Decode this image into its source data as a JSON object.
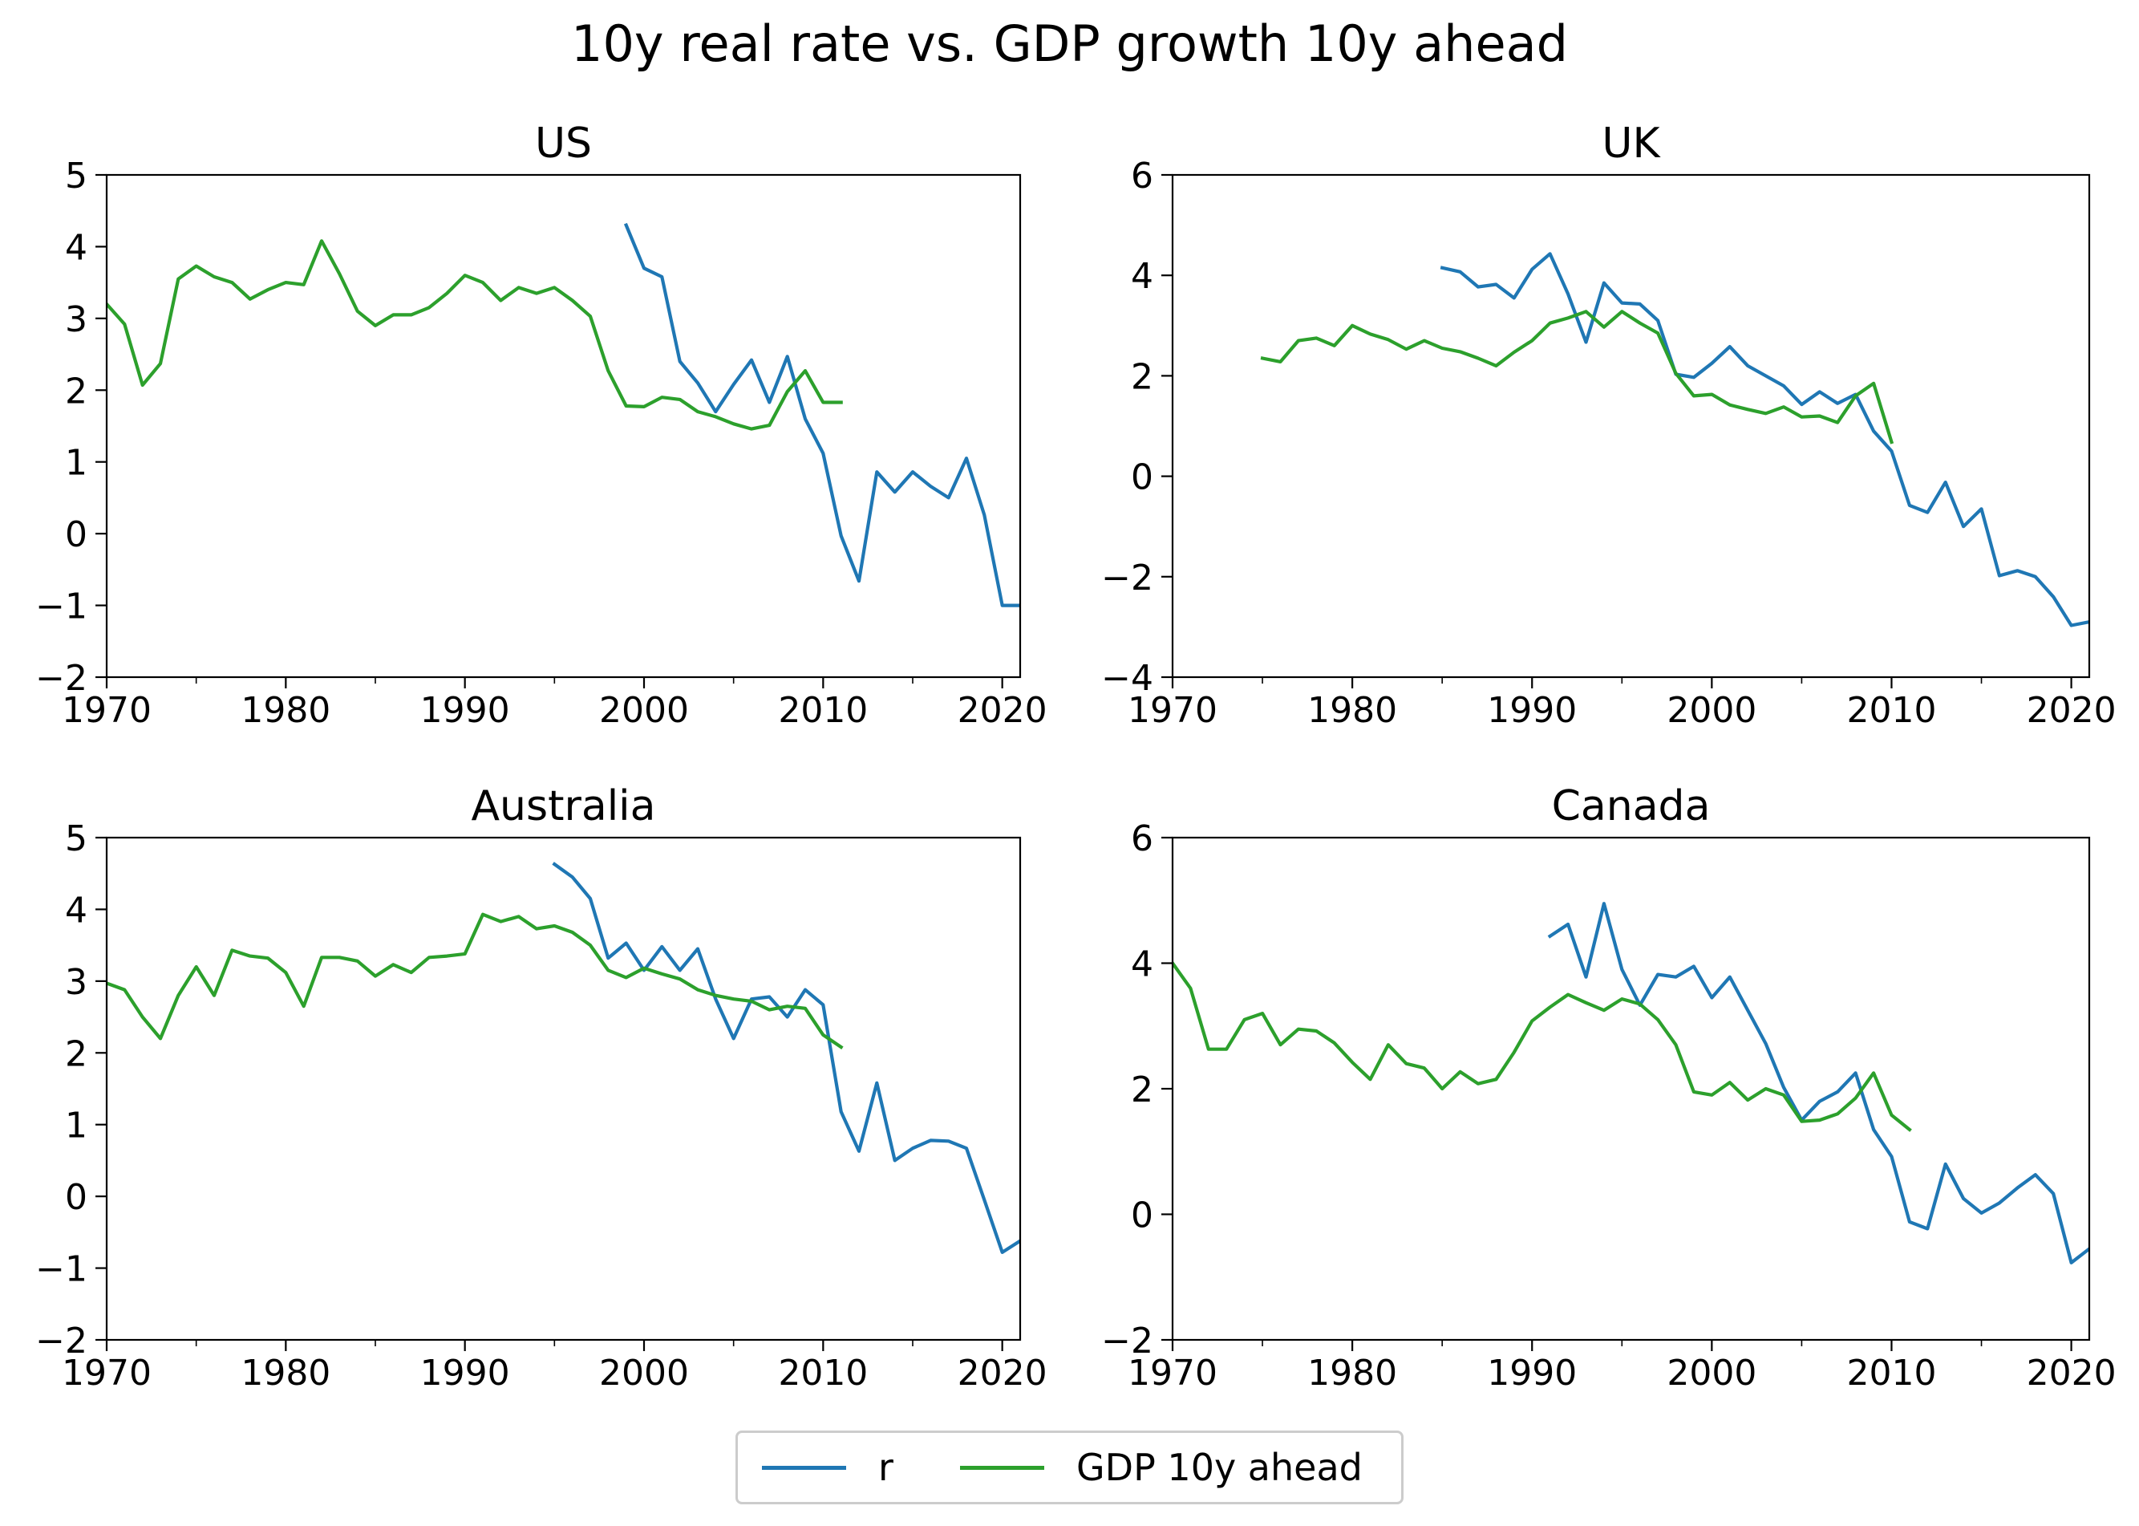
{
  "figure": {
    "title": "10y real rate vs. GDP growth 10y ahead",
    "legend": [
      {
        "label": "r",
        "color": "#1f77b4"
      },
      {
        "label": "GDP 10y ahead",
        "color": "#2ca02c"
      }
    ],
    "legend_placement": "bottom-center"
  },
  "chart_data": [
    {
      "type": "line",
      "title": "US",
      "xlim": [
        1970,
        2021
      ],
      "ylim": [
        -2,
        5
      ],
      "xticks": [
        1970,
        1980,
        1990,
        2000,
        2010,
        2020
      ],
      "xtick_labels": [
        "1970",
        "1980",
        "1990",
        "2000",
        "2010",
        "2020"
      ],
      "yticks": [
        -2,
        -1,
        0,
        1,
        2,
        3,
        4,
        5
      ],
      "ytick_labels": [
        "−2",
        "−1",
        "0",
        "1",
        "2",
        "3",
        "4",
        "5"
      ],
      "grid": false,
      "series": [
        {
          "name": "r",
          "color": "#1f77b4",
          "x": [
            1999,
            2000,
            2001,
            2002,
            2003,
            2004,
            2005,
            2006,
            2007,
            2008,
            2009,
            2010,
            2011,
            2012,
            2013,
            2014,
            2015,
            2016,
            2017,
            2018,
            2019,
            2020,
            2021
          ],
          "y": [
            4.3,
            3.7,
            3.58,
            2.4,
            2.1,
            1.7,
            2.08,
            2.42,
            1.83,
            2.47,
            1.6,
            1.12,
            -0.03,
            -0.66,
            0.86,
            0.58,
            0.86,
            0.66,
            0.5,
            1.05,
            0.26,
            -1.0,
            -1.0
          ]
        },
        {
          "name": "GDP 10y ahead",
          "color": "#2ca02c",
          "x": [
            1970,
            1971,
            1972,
            1973,
            1974,
            1975,
            1976,
            1977,
            1978,
            1979,
            1980,
            1981,
            1982,
            1983,
            1984,
            1985,
            1986,
            1987,
            1988,
            1989,
            1990,
            1991,
            1992,
            1993,
            1994,
            1995,
            1996,
            1997,
            1998,
            1999,
            2000,
            2001,
            2002,
            2003,
            2004,
            2005,
            2006,
            2007,
            2008,
            2009,
            2010,
            2011
          ],
          "y": [
            3.2,
            2.92,
            2.07,
            2.37,
            3.55,
            3.73,
            3.58,
            3.5,
            3.27,
            3.4,
            3.5,
            3.47,
            4.08,
            3.62,
            3.1,
            2.9,
            3.05,
            3.05,
            3.15,
            3.35,
            3.6,
            3.5,
            3.25,
            3.43,
            3.35,
            3.43,
            3.25,
            3.03,
            2.27,
            1.78,
            1.77,
            1.9,
            1.87,
            1.7,
            1.63,
            1.53,
            1.46,
            1.51,
            1.98,
            2.27,
            1.83,
            1.83
          ]
        }
      ]
    },
    {
      "type": "line",
      "title": "UK",
      "xlim": [
        1970,
        2021
      ],
      "ylim": [
        -4,
        6
      ],
      "xticks": [
        1970,
        1980,
        1990,
        2000,
        2010,
        2020
      ],
      "xtick_labels": [
        "1970",
        "1980",
        "1990",
        "2000",
        "2010",
        "2020"
      ],
      "yticks": [
        -4,
        -2,
        0,
        2,
        4,
        6
      ],
      "ytick_labels": [
        "−4",
        "−2",
        "0",
        "2",
        "4",
        "6"
      ],
      "grid": false,
      "series": [
        {
          "name": "r",
          "color": "#1f77b4",
          "x": [
            1985,
            1986,
            1987,
            1988,
            1989,
            1990,
            1991,
            1992,
            1993,
            1994,
            1995,
            1996,
            1997,
            1998,
            1999,
            2000,
            2001,
            2002,
            2003,
            2004,
            2005,
            2006,
            2007,
            2008,
            2009,
            2010,
            2011,
            2012,
            2013,
            2014,
            2015,
            2016,
            2017,
            2018,
            2019,
            2020,
            2021
          ],
          "y": [
            4.15,
            4.07,
            3.77,
            3.82,
            3.55,
            4.12,
            4.43,
            3.63,
            2.67,
            3.85,
            3.45,
            3.43,
            3.1,
            2.03,
            1.97,
            2.25,
            2.58,
            2.2,
            2.0,
            1.8,
            1.43,
            1.68,
            1.45,
            1.63,
            0.9,
            0.5,
            -0.58,
            -0.72,
            -0.12,
            -1.0,
            -0.65,
            -1.98,
            -1.88,
            -2.0,
            -2.4,
            -2.97,
            -2.9
          ]
        },
        {
          "name": "GDP 10y ahead",
          "color": "#2ca02c",
          "x": [
            1975,
            1976,
            1977,
            1978,
            1979,
            1980,
            1981,
            1982,
            1983,
            1984,
            1985,
            1986,
            1987,
            1988,
            1989,
            1990,
            1991,
            1992,
            1993,
            1994,
            1995,
            1996,
            1997,
            1998,
            1999,
            2000,
            2001,
            2002,
            2003,
            2004,
            2005,
            2006,
            2007,
            2008,
            2009,
            2010
          ],
          "y": [
            2.35,
            2.28,
            2.7,
            2.75,
            2.6,
            3.0,
            2.83,
            2.72,
            2.53,
            2.7,
            2.55,
            2.48,
            2.35,
            2.2,
            2.47,
            2.7,
            3.05,
            3.15,
            3.28,
            2.97,
            3.28,
            3.05,
            2.85,
            2.05,
            1.6,
            1.63,
            1.42,
            1.33,
            1.25,
            1.38,
            1.18,
            1.2,
            1.07,
            1.6,
            1.85,
            0.68
          ]
        }
      ]
    },
    {
      "type": "line",
      "title": "Australia",
      "xlim": [
        1970,
        2021
      ],
      "ylim": [
        -2,
        5
      ],
      "xticks": [
        1970,
        1980,
        1990,
        2000,
        2010,
        2020
      ],
      "xtick_labels": [
        "1970",
        "1980",
        "1990",
        "2000",
        "2010",
        "2020"
      ],
      "yticks": [
        -2,
        -1,
        0,
        1,
        2,
        3,
        4,
        5
      ],
      "ytick_labels": [
        "−2",
        "−1",
        "0",
        "1",
        "2",
        "3",
        "4",
        "5"
      ],
      "grid": false,
      "series": [
        {
          "name": "r",
          "color": "#1f77b4",
          "x": [
            1995,
            1996,
            1997,
            1998,
            1999,
            2000,
            2001,
            2002,
            2003,
            2004,
            2005,
            2006,
            2007,
            2008,
            2009,
            2010,
            2011,
            2012,
            2013,
            2014,
            2015,
            2016,
            2017,
            2018,
            2019,
            2020,
            2021
          ],
          "y": [
            4.63,
            4.45,
            4.15,
            3.32,
            3.53,
            3.15,
            3.48,
            3.15,
            3.45,
            2.75,
            2.2,
            2.75,
            2.78,
            2.5,
            2.88,
            2.67,
            1.18,
            0.63,
            1.58,
            0.5,
            0.67,
            0.78,
            0.77,
            0.67,
            -0.05,
            -0.78,
            -0.62
          ]
        },
        {
          "name": "GDP 10y ahead",
          "color": "#2ca02c",
          "x": [
            1970,
            1971,
            1972,
            1973,
            1974,
            1975,
            1976,
            1977,
            1978,
            1979,
            1980,
            1981,
            1982,
            1983,
            1984,
            1985,
            1986,
            1987,
            1988,
            1989,
            1990,
            1991,
            1992,
            1993,
            1994,
            1995,
            1996,
            1997,
            1998,
            1999,
            2000,
            2001,
            2002,
            2003,
            2004,
            2005,
            2006,
            2007,
            2008,
            2009,
            2010,
            2011
          ],
          "y": [
            2.97,
            2.88,
            2.5,
            2.2,
            2.8,
            3.2,
            2.8,
            3.43,
            3.35,
            3.32,
            3.12,
            2.65,
            3.33,
            3.33,
            3.28,
            3.07,
            3.23,
            3.12,
            3.33,
            3.35,
            3.38,
            3.93,
            3.83,
            3.9,
            3.73,
            3.77,
            3.68,
            3.5,
            3.15,
            3.05,
            3.18,
            3.1,
            3.03,
            2.88,
            2.8,
            2.75,
            2.72,
            2.6,
            2.65,
            2.62,
            2.25,
            2.08
          ]
        }
      ]
    },
    {
      "type": "line",
      "title": "Canada",
      "xlim": [
        1970,
        2021
      ],
      "ylim": [
        -2,
        6
      ],
      "xticks": [
        1970,
        1980,
        1990,
        2000,
        2010,
        2020
      ],
      "xtick_labels": [
        "1970",
        "1980",
        "1990",
        "2000",
        "2010",
        "2020"
      ],
      "yticks": [
        -2,
        0,
        2,
        4,
        6
      ],
      "ytick_labels": [
        "−2",
        "0",
        "2",
        "4",
        "6"
      ],
      "grid": false,
      "series": [
        {
          "name": "r",
          "color": "#1f77b4",
          "x": [
            1991,
            1992,
            1993,
            1994,
            1995,
            1996,
            1997,
            1998,
            1999,
            2000,
            2001,
            2002,
            2003,
            2004,
            2005,
            2006,
            2007,
            2008,
            2009,
            2010,
            2011,
            2012,
            2013,
            2014,
            2015,
            2016,
            2017,
            2018,
            2019,
            2020,
            2021
          ],
          "y": [
            4.43,
            4.62,
            3.78,
            4.95,
            3.9,
            3.33,
            3.82,
            3.78,
            3.95,
            3.45,
            3.78,
            3.25,
            2.72,
            2.02,
            1.5,
            1.8,
            1.95,
            2.25,
            1.35,
            0.92,
            -0.12,
            -0.23,
            0.8,
            0.25,
            0.02,
            0.18,
            0.42,
            0.63,
            0.33,
            -0.77,
            -0.55
          ]
        },
        {
          "name": "GDP 10y ahead",
          "color": "#2ca02c",
          "x": [
            1970,
            1971,
            1972,
            1973,
            1974,
            1975,
            1976,
            1977,
            1978,
            1979,
            1980,
            1981,
            1982,
            1983,
            1984,
            1985,
            1986,
            1987,
            1988,
            1989,
            1990,
            1991,
            1992,
            1993,
            1994,
            1995,
            1996,
            1997,
            1998,
            1999,
            2000,
            2001,
            2002,
            2003,
            2004,
            2005,
            2006,
            2007,
            2008,
            2009,
            2010,
            2011
          ],
          "y": [
            4.0,
            3.6,
            2.63,
            2.63,
            3.1,
            3.2,
            2.7,
            2.95,
            2.92,
            2.73,
            2.42,
            2.15,
            2.7,
            2.4,
            2.33,
            2.0,
            2.27,
            2.08,
            2.15,
            2.58,
            3.08,
            3.3,
            3.5,
            3.37,
            3.25,
            3.43,
            3.35,
            3.1,
            2.7,
            1.95,
            1.9,
            2.1,
            1.82,
            2.0,
            1.9,
            1.48,
            1.5,
            1.6,
            1.85,
            2.25,
            1.58,
            1.35
          ]
        }
      ]
    }
  ]
}
